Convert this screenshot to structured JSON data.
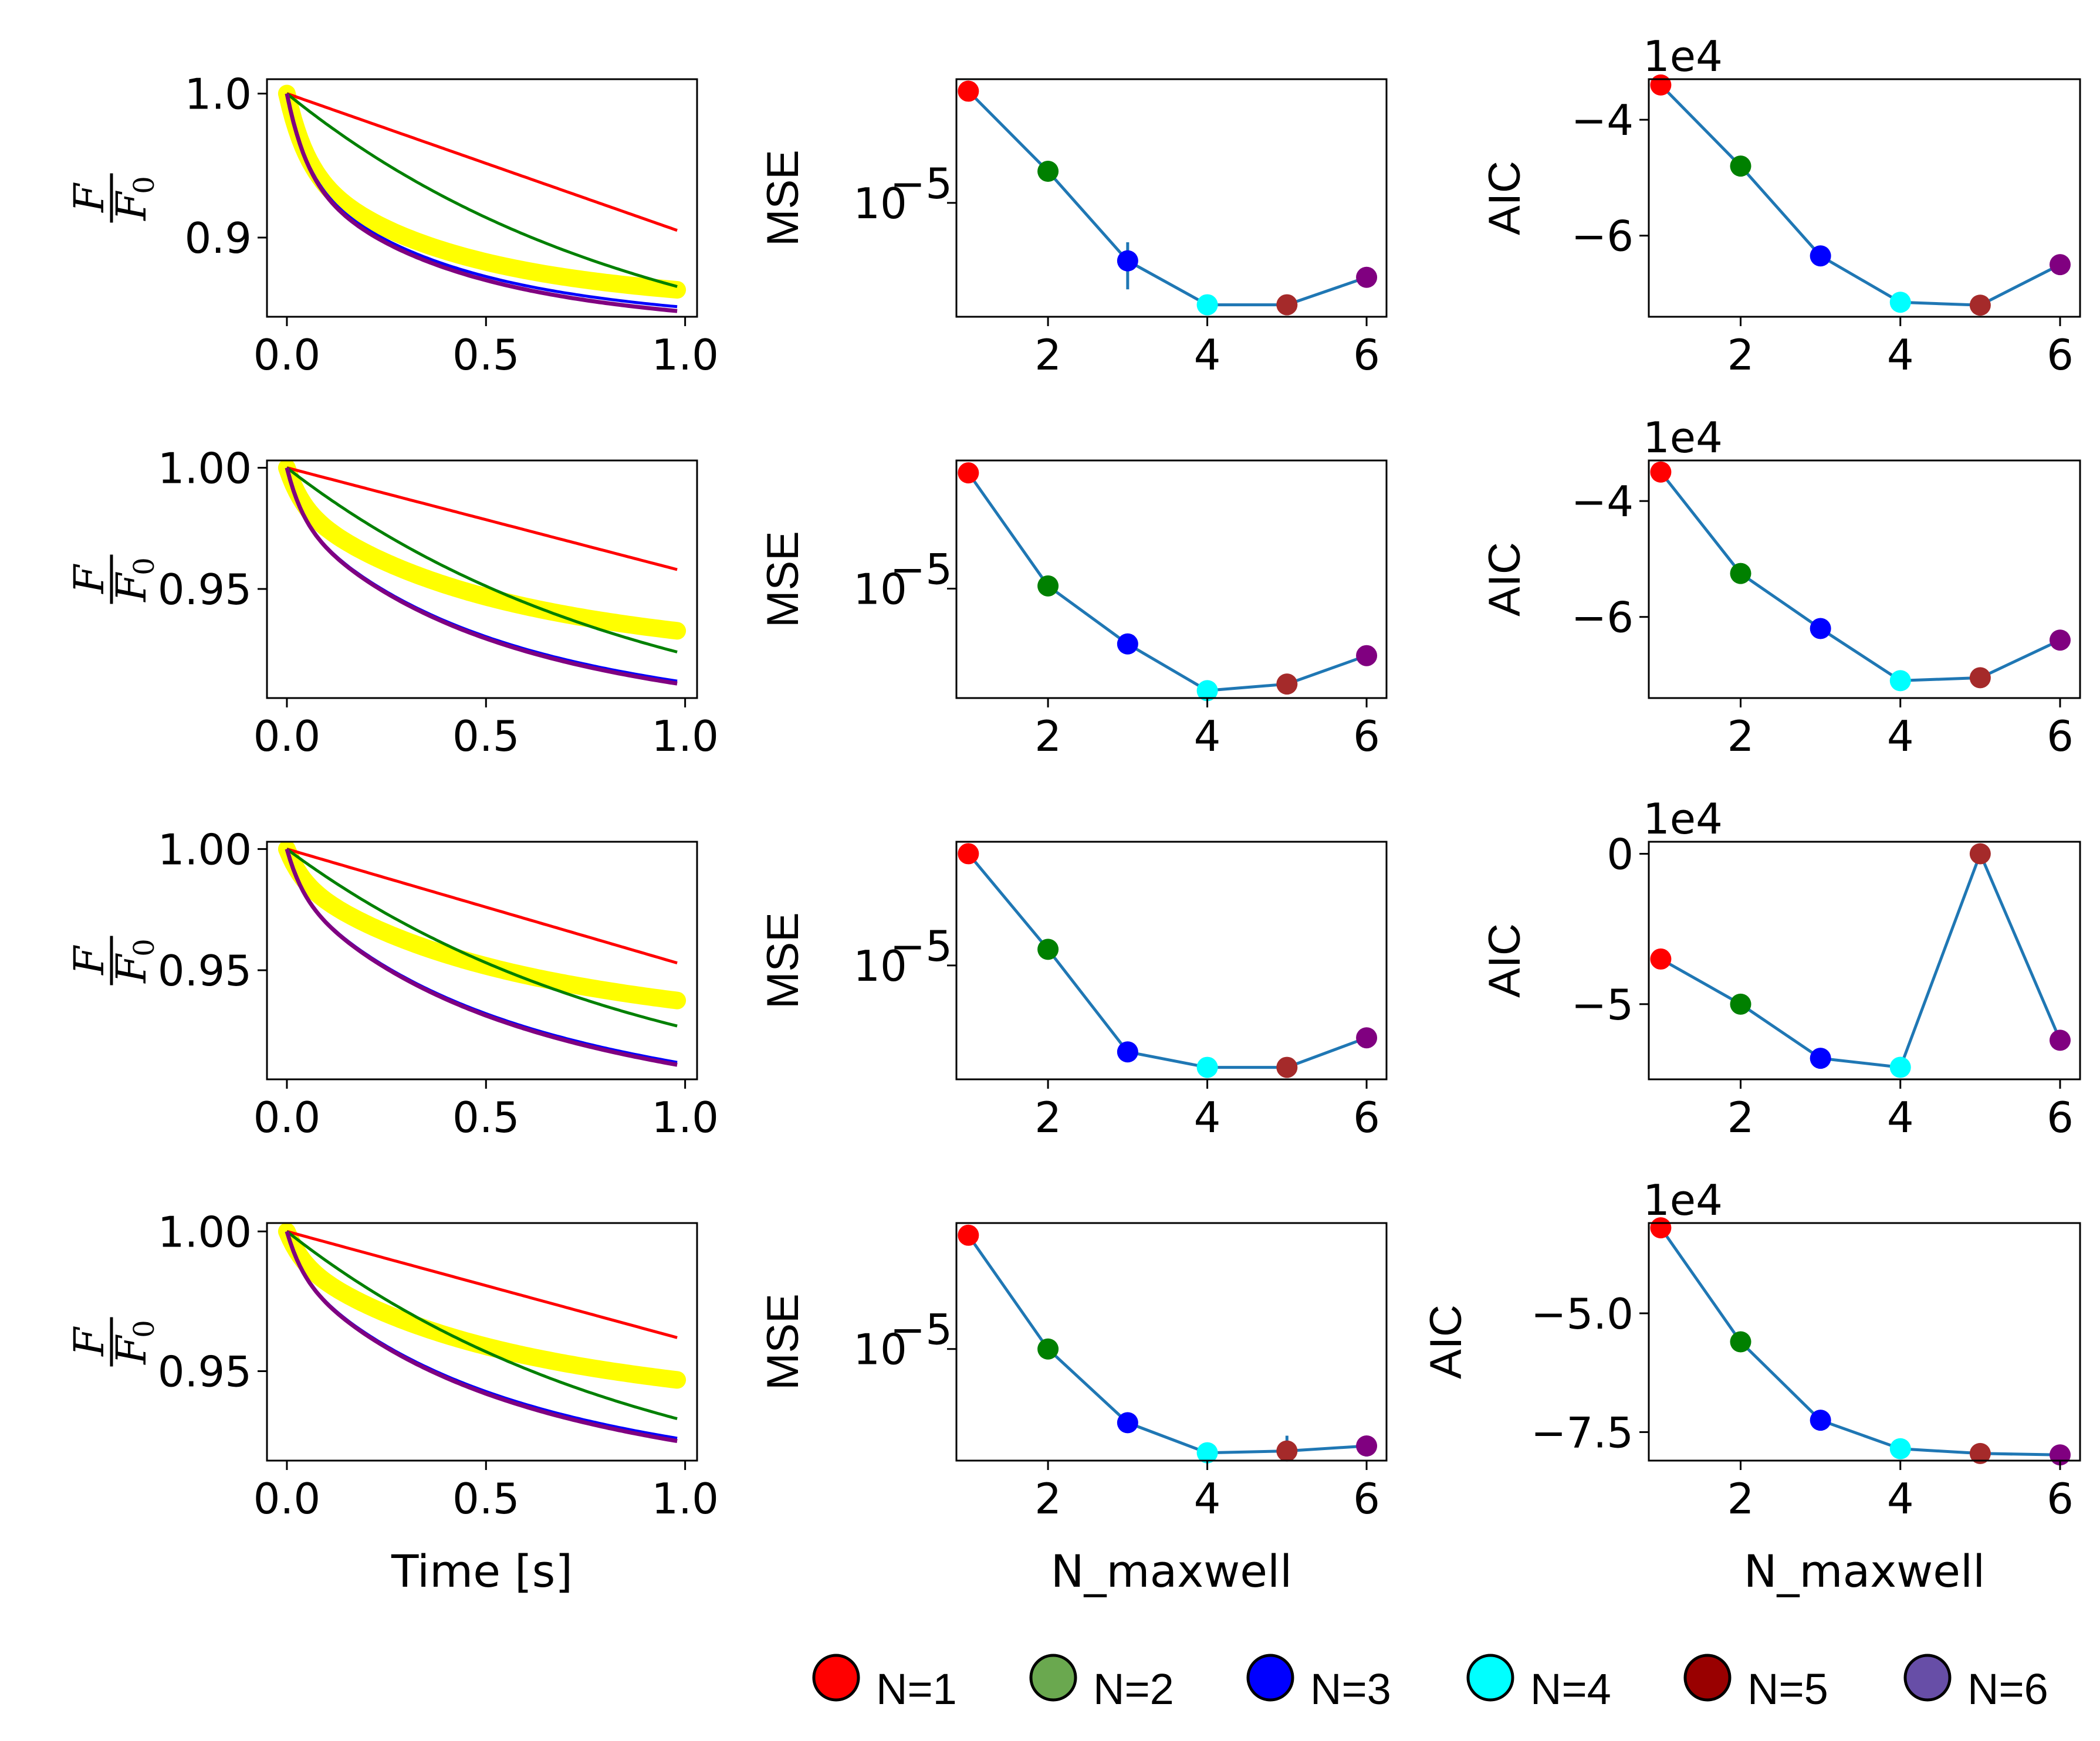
{
  "colors": {
    "N1": "#ff0000",
    "N2": "#008000",
    "N3": "#0000ff",
    "N4": "#00ffff",
    "N5": "#a52a2a",
    "N6": "#800080",
    "data_band": "#ffff00",
    "fit_line": "#1f77b4",
    "legend": [
      "#ff0000",
      "#6aa84f",
      "#0000ff",
      "#00ffff",
      "#990000",
      "#674ea7"
    ]
  },
  "legend": {
    "items": [
      {
        "label": "N=1"
      },
      {
        "label": "N=2"
      },
      {
        "label": "N=3"
      },
      {
        "label": "N=4"
      },
      {
        "label": "N=5"
      },
      {
        "label": "N=6"
      }
    ]
  },
  "chart_data": [
    {
      "type": "line",
      "row": 1,
      "panel": "force_relaxation",
      "ylabel_num": "F",
      "ylabel_den": "F",
      "ylabel_den_sub": "0",
      "xlabel": "",
      "xticks": [
        "0.0",
        "0.5",
        "1.0"
      ],
      "xlim": [
        -0.05,
        1.03
      ],
      "yticks": [
        "0.9",
        "1.0"
      ],
      "ytick_values": [
        0.9,
        1.0
      ],
      "ylim": [
        0.845,
        1.01
      ],
      "data_curve": {
        "a": [
          0.05,
          0.08,
          0.04
        ],
        "tau": [
          0.05,
          0.35,
          3.0
        ]
      },
      "fits": [
        {
          "name": "N=1",
          "end": 0.905
        },
        {
          "name": "N=2",
          "end": 0.866
        },
        {
          "name": "N=3",
          "end": 0.852
        },
        {
          "name": "N=6",
          "end": 0.849
        }
      ]
    },
    {
      "type": "line",
      "row": 1,
      "panel": "mse",
      "yscale": "log",
      "ylabel": "MSE",
      "xlabel": "",
      "x": [
        1,
        2,
        3,
        4,
        5,
        6
      ],
      "xticks": [
        "2",
        "4",
        "6"
      ],
      "xlim": [
        0.85,
        6.25
      ],
      "ytick_label": "10",
      "ytick_exp": "−5",
      "ytick_value": 1e-05,
      "ylim": [
        1.2e-06,
        0.0001
      ],
      "values": [
        8e-05,
        1.8e-05,
        3.4e-06,
        1.5e-06,
        1.5e-06,
        2.5e-06
      ],
      "errors": [
        0,
        0,
        1.4e-06,
        0,
        0,
        0
      ]
    },
    {
      "type": "line",
      "row": 1,
      "panel": "aic",
      "ylabel": "AIC",
      "xlabel": "",
      "offset": "1e4",
      "x": [
        1,
        2,
        3,
        4,
        5,
        6
      ],
      "xticks": [
        "2",
        "4",
        "6"
      ],
      "xlim": [
        0.85,
        6.25
      ],
      "yticks": [
        "−4",
        "−6"
      ],
      "ytick_values": [
        -4,
        -6
      ],
      "ylim": [
        -7.4,
        -3.3
      ],
      "values": [
        -3.4,
        -4.8,
        -6.35,
        -7.15,
        -7.2,
        -6.5
      ]
    },
    {
      "type": "line",
      "row": 2,
      "panel": "force_relaxation",
      "ylabel_num": "F",
      "ylabel_den": "F",
      "ylabel_den_sub": "0",
      "xlabel": "",
      "xticks": [
        "0.0",
        "0.5",
        "1.0"
      ],
      "xlim": [
        -0.05,
        1.03
      ],
      "yticks": [
        "0.95",
        "1.00"
      ],
      "ytick_values": [
        0.95,
        1.0
      ],
      "ylim": [
        0.905,
        1.003
      ],
      "data_curve": {
        "a": [
          0.015,
          0.045,
          0.04
        ],
        "tau": [
          0.04,
          0.4,
          3.0
        ]
      },
      "fits": [
        {
          "name": "N=1",
          "end": 0.958
        },
        {
          "name": "N=2",
          "end": 0.924
        },
        {
          "name": "N=3",
          "end": 0.912
        },
        {
          "name": "N=6",
          "end": 0.911
        }
      ]
    },
    {
      "type": "line",
      "row": 2,
      "panel": "mse",
      "yscale": "log",
      "ylabel": "MSE",
      "xlabel": "",
      "x": [
        1,
        2,
        3,
        4,
        5,
        6
      ],
      "xticks": [
        "2",
        "4",
        "6"
      ],
      "xlim": [
        0.85,
        6.25
      ],
      "ytick_label": "10",
      "ytick_exp": "−5",
      "ytick_value": 1e-05,
      "ylim": [
        1.4e-06,
        0.0001
      ],
      "values": [
        8e-05,
        1.05e-05,
        3.7e-06,
        1.6e-06,
        1.8e-06,
        3e-06
      ],
      "errors": [
        0,
        0,
        0,
        0,
        0,
        0
      ]
    },
    {
      "type": "line",
      "row": 2,
      "panel": "aic",
      "ylabel": "AIC",
      "xlabel": "",
      "offset": "1e4",
      "x": [
        1,
        2,
        3,
        4,
        5,
        6
      ],
      "xticks": [
        "2",
        "4",
        "6"
      ],
      "xlim": [
        0.85,
        6.25
      ],
      "yticks": [
        "−4",
        "−6"
      ],
      "ytick_values": [
        -4,
        -6
      ],
      "ylim": [
        -7.4,
        -3.3
      ],
      "values": [
        -3.5,
        -5.25,
        -6.2,
        -7.1,
        -7.05,
        -6.4
      ]
    },
    {
      "type": "line",
      "row": 3,
      "panel": "force_relaxation",
      "ylabel_num": "F",
      "ylabel_den": "F",
      "ylabel_den_sub": "0",
      "xlabel": "",
      "xticks": [
        "0.0",
        "0.5",
        "1.0"
      ],
      "xlim": [
        -0.05,
        1.03
      ],
      "yticks": [
        "0.95",
        "1.00"
      ],
      "ytick_values": [
        0.95,
        1.0
      ],
      "ylim": [
        0.905,
        1.003
      ],
      "data_curve": {
        "a": [
          0.012,
          0.04,
          0.05
        ],
        "tau": [
          0.04,
          0.4,
          3.0
        ]
      },
      "fits": [
        {
          "name": "N=1",
          "end": 0.953
        },
        {
          "name": "N=2",
          "end": 0.927
        },
        {
          "name": "N=3",
          "end": 0.912
        },
        {
          "name": "N=6",
          "end": 0.911
        }
      ]
    },
    {
      "type": "line",
      "row": 3,
      "panel": "mse",
      "yscale": "log",
      "ylabel": "MSE",
      "xlabel": "",
      "x": [
        1,
        2,
        3,
        4,
        5,
        6
      ],
      "xticks": [
        "2",
        "4",
        "6"
      ],
      "xlim": [
        0.85,
        6.25
      ],
      "ytick_label": "10",
      "ytick_exp": "−5",
      "ytick_value": 1e-05,
      "ylim": [
        1.2e-06,
        0.0001
      ],
      "values": [
        8e-05,
        1.35e-05,
        2e-06,
        1.5e-06,
        1.5e-06,
        2.6e-06
      ],
      "errors": [
        0,
        0,
        0,
        0,
        0,
        0
      ]
    },
    {
      "type": "line",
      "row": 3,
      "panel": "aic",
      "ylabel": "AIC",
      "xlabel": "",
      "offset": "1e4",
      "x": [
        1,
        2,
        3,
        4,
        5,
        6
      ],
      "xticks": [
        "0",
        "−5",
        "2",
        "4",
        "6"
      ],
      "xlim": [
        0.85,
        6.25
      ],
      "yticks": [
        "0",
        "−5"
      ],
      "ytick_values": [
        0,
        -5
      ],
      "ylim": [
        -7.5,
        0.4
      ],
      "values": [
        -3.5,
        -5.0,
        -6.8,
        -7.1,
        0.0,
        -6.2
      ]
    },
    {
      "type": "line",
      "row": 4,
      "panel": "force_relaxation",
      "ylabel_num": "F",
      "ylabel_den": "F",
      "ylabel_den_sub": "0",
      "xlabel": "Time [s]",
      "xticks": [
        "0.0",
        "0.5",
        "1.0"
      ],
      "xlim": [
        -0.05,
        1.03
      ],
      "yticks": [
        "0.95",
        "1.00"
      ],
      "ytick_values": [
        0.95,
        1.0
      ],
      "ylim": [
        0.918,
        1.003
      ],
      "data_curve": {
        "a": [
          0.01,
          0.035,
          0.04
        ],
        "tau": [
          0.04,
          0.4,
          3.0
        ]
      },
      "fits": [
        {
          "name": "N=1",
          "end": 0.962
        },
        {
          "name": "N=2",
          "end": 0.933
        },
        {
          "name": "N=3",
          "end": 0.926
        },
        {
          "name": "N=6",
          "end": 0.925
        }
      ]
    },
    {
      "type": "line",
      "row": 4,
      "panel": "mse",
      "yscale": "log",
      "ylabel": "MSE",
      "xlabel": "N_maxwell",
      "x": [
        1,
        2,
        3,
        4,
        5,
        6
      ],
      "xticks": [
        "2",
        "4",
        "6"
      ],
      "xlim": [
        0.85,
        6.25
      ],
      "ytick_label": "10",
      "ytick_exp": "−5",
      "ytick_value": 1e-05,
      "ylim": [
        1.3e-06,
        0.0001
      ],
      "values": [
        8e-05,
        1e-05,
        2.6e-06,
        1.5e-06,
        1.55e-06,
        1.7e-06
      ],
      "errors": [
        0,
        0,
        0,
        0,
        5e-07,
        3e-07
      ]
    },
    {
      "type": "line",
      "row": 4,
      "panel": "aic",
      "ylabel": "AIC",
      "xlabel": "N_maxwell",
      "offset": "1e4",
      "x": [
        1,
        2,
        3,
        4,
        5,
        6
      ],
      "xticks": [
        "2",
        "4",
        "6"
      ],
      "xlim": [
        0.85,
        6.25
      ],
      "yticks": [
        "−5.0",
        "−7.5"
      ],
      "ytick_values": [
        -5.0,
        -7.5
      ],
      "ylim": [
        -8.1,
        -3.1
      ],
      "values": [
        -3.2,
        -5.6,
        -7.25,
        -7.85,
        -7.95,
        -7.98
      ]
    }
  ]
}
